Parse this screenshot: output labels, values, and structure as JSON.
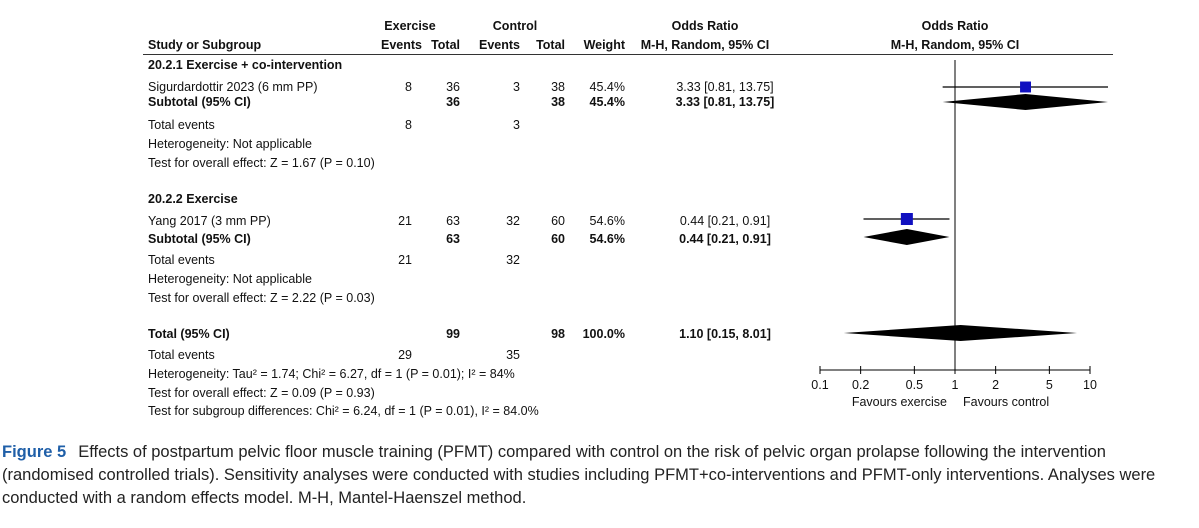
{
  "header": {
    "exercise": "Exercise",
    "control": "Control",
    "odds_ratio": "Odds Ratio",
    "odds_ratio_plot": "Odds Ratio",
    "study": "Study or Subgroup",
    "events1": "Events",
    "total1": "Total",
    "events2": "Events",
    "total2": "Total",
    "weight": "Weight",
    "method": "M-H, Random, 95% CI",
    "method_plot": "M-H, Random, 95% CI"
  },
  "groups": [
    {
      "title": "20.2.1 Exercise + co-intervention",
      "study": {
        "name": "Sigurdardottir 2023 (6 mm PP)",
        "e1": "8",
        "t1": "36",
        "e2": "3",
        "t2": "38",
        "weight": "45.4%",
        "ci": "3.33 [0.81, 13.75]"
      },
      "subtotal": {
        "name": "Subtotal (95% CI)",
        "t1": "36",
        "t2": "38",
        "weight": "45.4%",
        "ci": "3.33 [0.81, 13.75]"
      },
      "events": {
        "label": "Total events",
        "e1": "8",
        "e2": "3"
      },
      "heterogeneity": "Heterogeneity: Not applicable",
      "overall": "Test for overall effect: Z = 1.67 (P = 0.10)"
    },
    {
      "title": "20.2.2 Exercise",
      "study": {
        "name": "Yang 2017 (3 mm PP)",
        "e1": "21",
        "t1": "63",
        "e2": "32",
        "t2": "60",
        "weight": "54.6%",
        "ci": "0.44 [0.21, 0.91]"
      },
      "subtotal": {
        "name": "Subtotal (95% CI)",
        "t1": "63",
        "t2": "60",
        "weight": "54.6%",
        "ci": "0.44 [0.21, 0.91]"
      },
      "events": {
        "label": "Total events",
        "e1": "21",
        "e2": "32"
      },
      "heterogeneity": "Heterogeneity: Not applicable",
      "overall": "Test for overall effect: Z = 2.22 (P = 0.03)"
    }
  ],
  "total": {
    "name": "Total (95% CI)",
    "t1": "99",
    "t2": "98",
    "weight": "100.0%",
    "ci": "1.10 [0.15, 8.01]",
    "events_label": "Total events",
    "e1": "29",
    "e2": "35",
    "heterogeneity": "Heterogeneity: Tau² = 1.74; Chi² = 6.27, df = 1 (P = 0.01); I² = 84%",
    "overall": "Test for overall effect: Z = 0.09 (P = 0.93)",
    "subgroup": "Test for subgroup differences: Chi² = 6.24, df = 1 (P = 0.01), I² = 84.0%"
  },
  "chart_data": {
    "type": "forest",
    "scale": "log",
    "xlim": [
      0.1,
      10
    ],
    "ticks": [
      0.1,
      0.2,
      0.5,
      1,
      2,
      5,
      10
    ],
    "tick_labels": [
      "0.1",
      "0.2",
      "0.5",
      "1",
      "2",
      "5",
      "10"
    ],
    "reference_line": 1,
    "favours_left": "Favours exercise",
    "favours_right": "Favours control",
    "square_color": "#1010c0",
    "diamond_color": "#000000",
    "studies": [
      {
        "name": "Sigurdardottir 2023 (6 mm PP)",
        "or": 3.33,
        "lo": 0.81,
        "hi": 13.75,
        "weight": 45.4
      },
      {
        "name": "Yang 2017 (3 mm PP)",
        "or": 0.44,
        "lo": 0.21,
        "hi": 0.91,
        "weight": 54.6
      }
    ],
    "diamonds": [
      {
        "name": "Subtotal 20.2.1",
        "or": 3.33,
        "lo": 0.81,
        "hi": 13.75
      },
      {
        "name": "Subtotal 20.2.2",
        "or": 0.44,
        "lo": 0.21,
        "hi": 0.91
      },
      {
        "name": "Total",
        "or": 1.1,
        "lo": 0.15,
        "hi": 8.01
      }
    ]
  },
  "caption": {
    "figure": "Figure 5",
    "text": "Effects of postpartum pelvic floor muscle training (PFMT) compared with control on the risk of pelvic organ prolapse following the intervention (randomised controlled trials). Sensitivity analyses were conducted with studies including PFMT+co-interventions and PFMT-only interventions. Analyses were conducted with a random effects model. M-H, Mantel-Haenszel method."
  }
}
